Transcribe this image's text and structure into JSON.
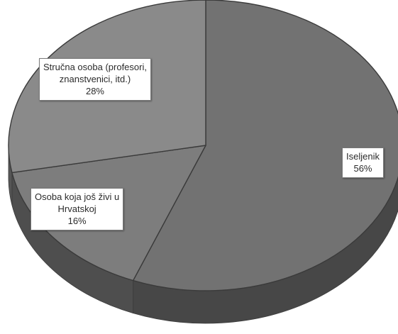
{
  "chart_data": {
    "type": "pie",
    "style": "3d",
    "title": "",
    "legend": "none",
    "slices": [
      {
        "label_lines": [
          "Iseljenik"
        ],
        "value": 56,
        "value_label": "56%",
        "color": "#727272"
      },
      {
        "label_lines": [
          "Osoba koja još živi u",
          "Hrvatskoj"
        ],
        "value": 16,
        "value_label": "16%",
        "color": "#7d7d7d"
      },
      {
        "label_lines": [
          "Stručna osoba (profesori,",
          "znanstvenici, itd.)"
        ],
        "value": 28,
        "value_label": "28%",
        "color": "#8a8a8a"
      }
    ]
  }
}
